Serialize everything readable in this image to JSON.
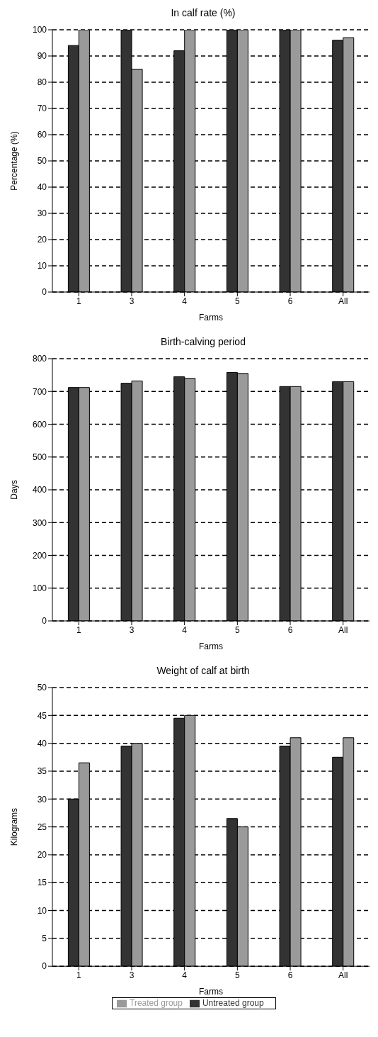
{
  "chart_data": [
    {
      "type": "bar",
      "title": "In calf rate (%)",
      "xlabel": "Farms",
      "ylabel": "Percentage (%)",
      "categories": [
        "1",
        "3",
        "4",
        "5",
        "6",
        "All"
      ],
      "series": [
        {
          "color": "#333333",
          "values": [
            94,
            100,
            92,
            100,
            100,
            96
          ]
        },
        {
          "color": "#9a9a9a",
          "values": [
            100,
            85,
            100,
            100,
            100,
            97
          ]
        }
      ],
      "ylim": [
        0,
        100
      ],
      "yticks": [
        0,
        10,
        20,
        30,
        40,
        50,
        60,
        70,
        80,
        90,
        100
      ],
      "grid": "y",
      "legend": false
    },
    {
      "type": "bar",
      "title": "Birth-calving period",
      "xlabel": "Farms",
      "ylabel": "Days",
      "categories": [
        "1",
        "3",
        "4",
        "5",
        "6",
        "All"
      ],
      "series": [
        {
          "color": "#333333",
          "values": [
            712,
            725,
            745,
            758,
            715,
            730
          ]
        },
        {
          "color": "#9a9a9a",
          "values": [
            712,
            732,
            740,
            755,
            715,
            730
          ]
        }
      ],
      "ylim": [
        0,
        800
      ],
      "yticks": [
        0,
        100,
        200,
        300,
        400,
        500,
        600,
        700,
        800
      ],
      "grid": "y",
      "legend": false
    },
    {
      "type": "bar",
      "title": "Weight of calf at birth",
      "xlabel": "Farms",
      "ylabel": "Kilograms",
      "categories": [
        "1",
        "3",
        "4",
        "5",
        "6",
        "All"
      ],
      "series": [
        {
          "name": "Untreated group",
          "color": "#333333",
          "values": [
            30,
            39.5,
            44.5,
            26.5,
            39.5,
            37.5
          ]
        },
        {
          "name": "Treated group",
          "color": "#9a9a9a",
          "values": [
            36.5,
            40,
            45,
            25,
            41,
            41
          ]
        }
      ],
      "ylim": [
        0,
        50
      ],
      "yticks": [
        0,
        5,
        10,
        15,
        20,
        25,
        30,
        35,
        40,
        45,
        50
      ],
      "grid": "y",
      "legend": "bottom"
    }
  ]
}
